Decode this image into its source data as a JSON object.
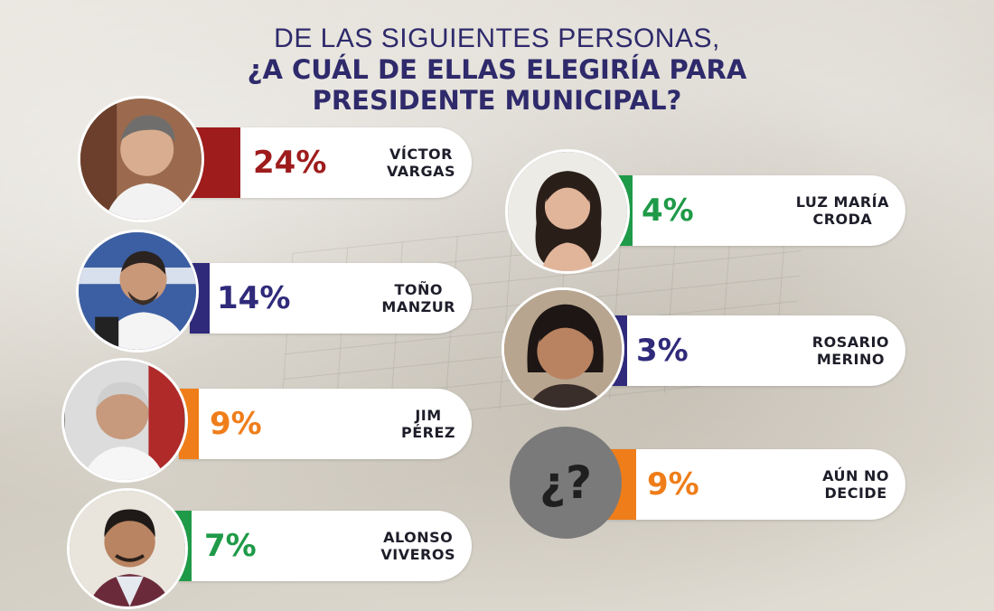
{
  "title": {
    "line1": "DE LAS SIGUIENTES PERSONAS,",
    "line2": "¿A CUÁL DE ELLAS ELEGIRÍA PARA",
    "line3": "PRESIDENTE MUNICIPAL?"
  },
  "chart_data": {
    "type": "bar",
    "series": [
      {
        "values": [
          24,
          14,
          9,
          7,
          4,
          3,
          9
        ]
      }
    ],
    "categories": [
      "VÍCTOR VARGAS",
      "TOÑO MANZUR",
      "JIM PÉREZ",
      "ALONSO VIVEROS",
      "LUZ MARÍA CRODA",
      "ROSARIO MERINO",
      "AÚN NO DECIDE"
    ]
  },
  "candidates": [
    {
      "pct": "24%",
      "name1": "VÍCTOR",
      "name2": "VARGAS",
      "color": "#9e1c1c"
    },
    {
      "pct": "14%",
      "name1": "TOÑO",
      "name2": "MANZUR",
      "color": "#2f2a7a"
    },
    {
      "pct": "9%",
      "name1": "JIM",
      "name2": "PÉREZ",
      "color": "#ef7d1a"
    },
    {
      "pct": "7%",
      "name1": "ALONSO",
      "name2": "VIVEROS",
      "color": "#1f9a48"
    },
    {
      "pct": "4%",
      "name1": "LUZ MARÍA",
      "name2": "CRODA",
      "color": "#1f9a48"
    },
    {
      "pct": "3%",
      "name1": "ROSARIO",
      "name2": "MERINO",
      "color": "#2f2a7a"
    },
    {
      "pct": "9%",
      "name1": "AÚN NO",
      "name2": "DECIDE",
      "color": "#ef7d1a"
    }
  ],
  "unknown_symbol": "¿?"
}
